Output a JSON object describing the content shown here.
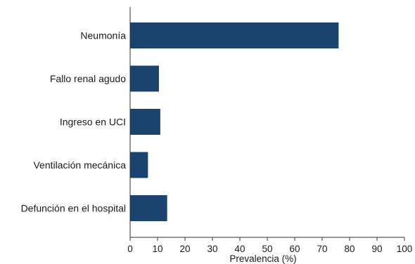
{
  "chart_data": {
    "type": "bar",
    "orientation": "horizontal",
    "categories": [
      "Neumonía",
      "Fallo renal agudo",
      "Ingreso en UCI",
      "Ventilación mecánica",
      "Defunción en el hospital"
    ],
    "values": [
      76,
      10.5,
      11,
      6.5,
      13.5
    ],
    "title": "",
    "xlabel": "Prevalencia (%)",
    "ylabel": "",
    "xlim": [
      0,
      100
    ],
    "xticks": [
      "0",
      "10",
      "20",
      "30",
      "40",
      "50",
      "60",
      "70",
      "80",
      "90",
      "100"
    ],
    "bar_color": "#1b4370",
    "grid": false,
    "legend": "none"
  }
}
